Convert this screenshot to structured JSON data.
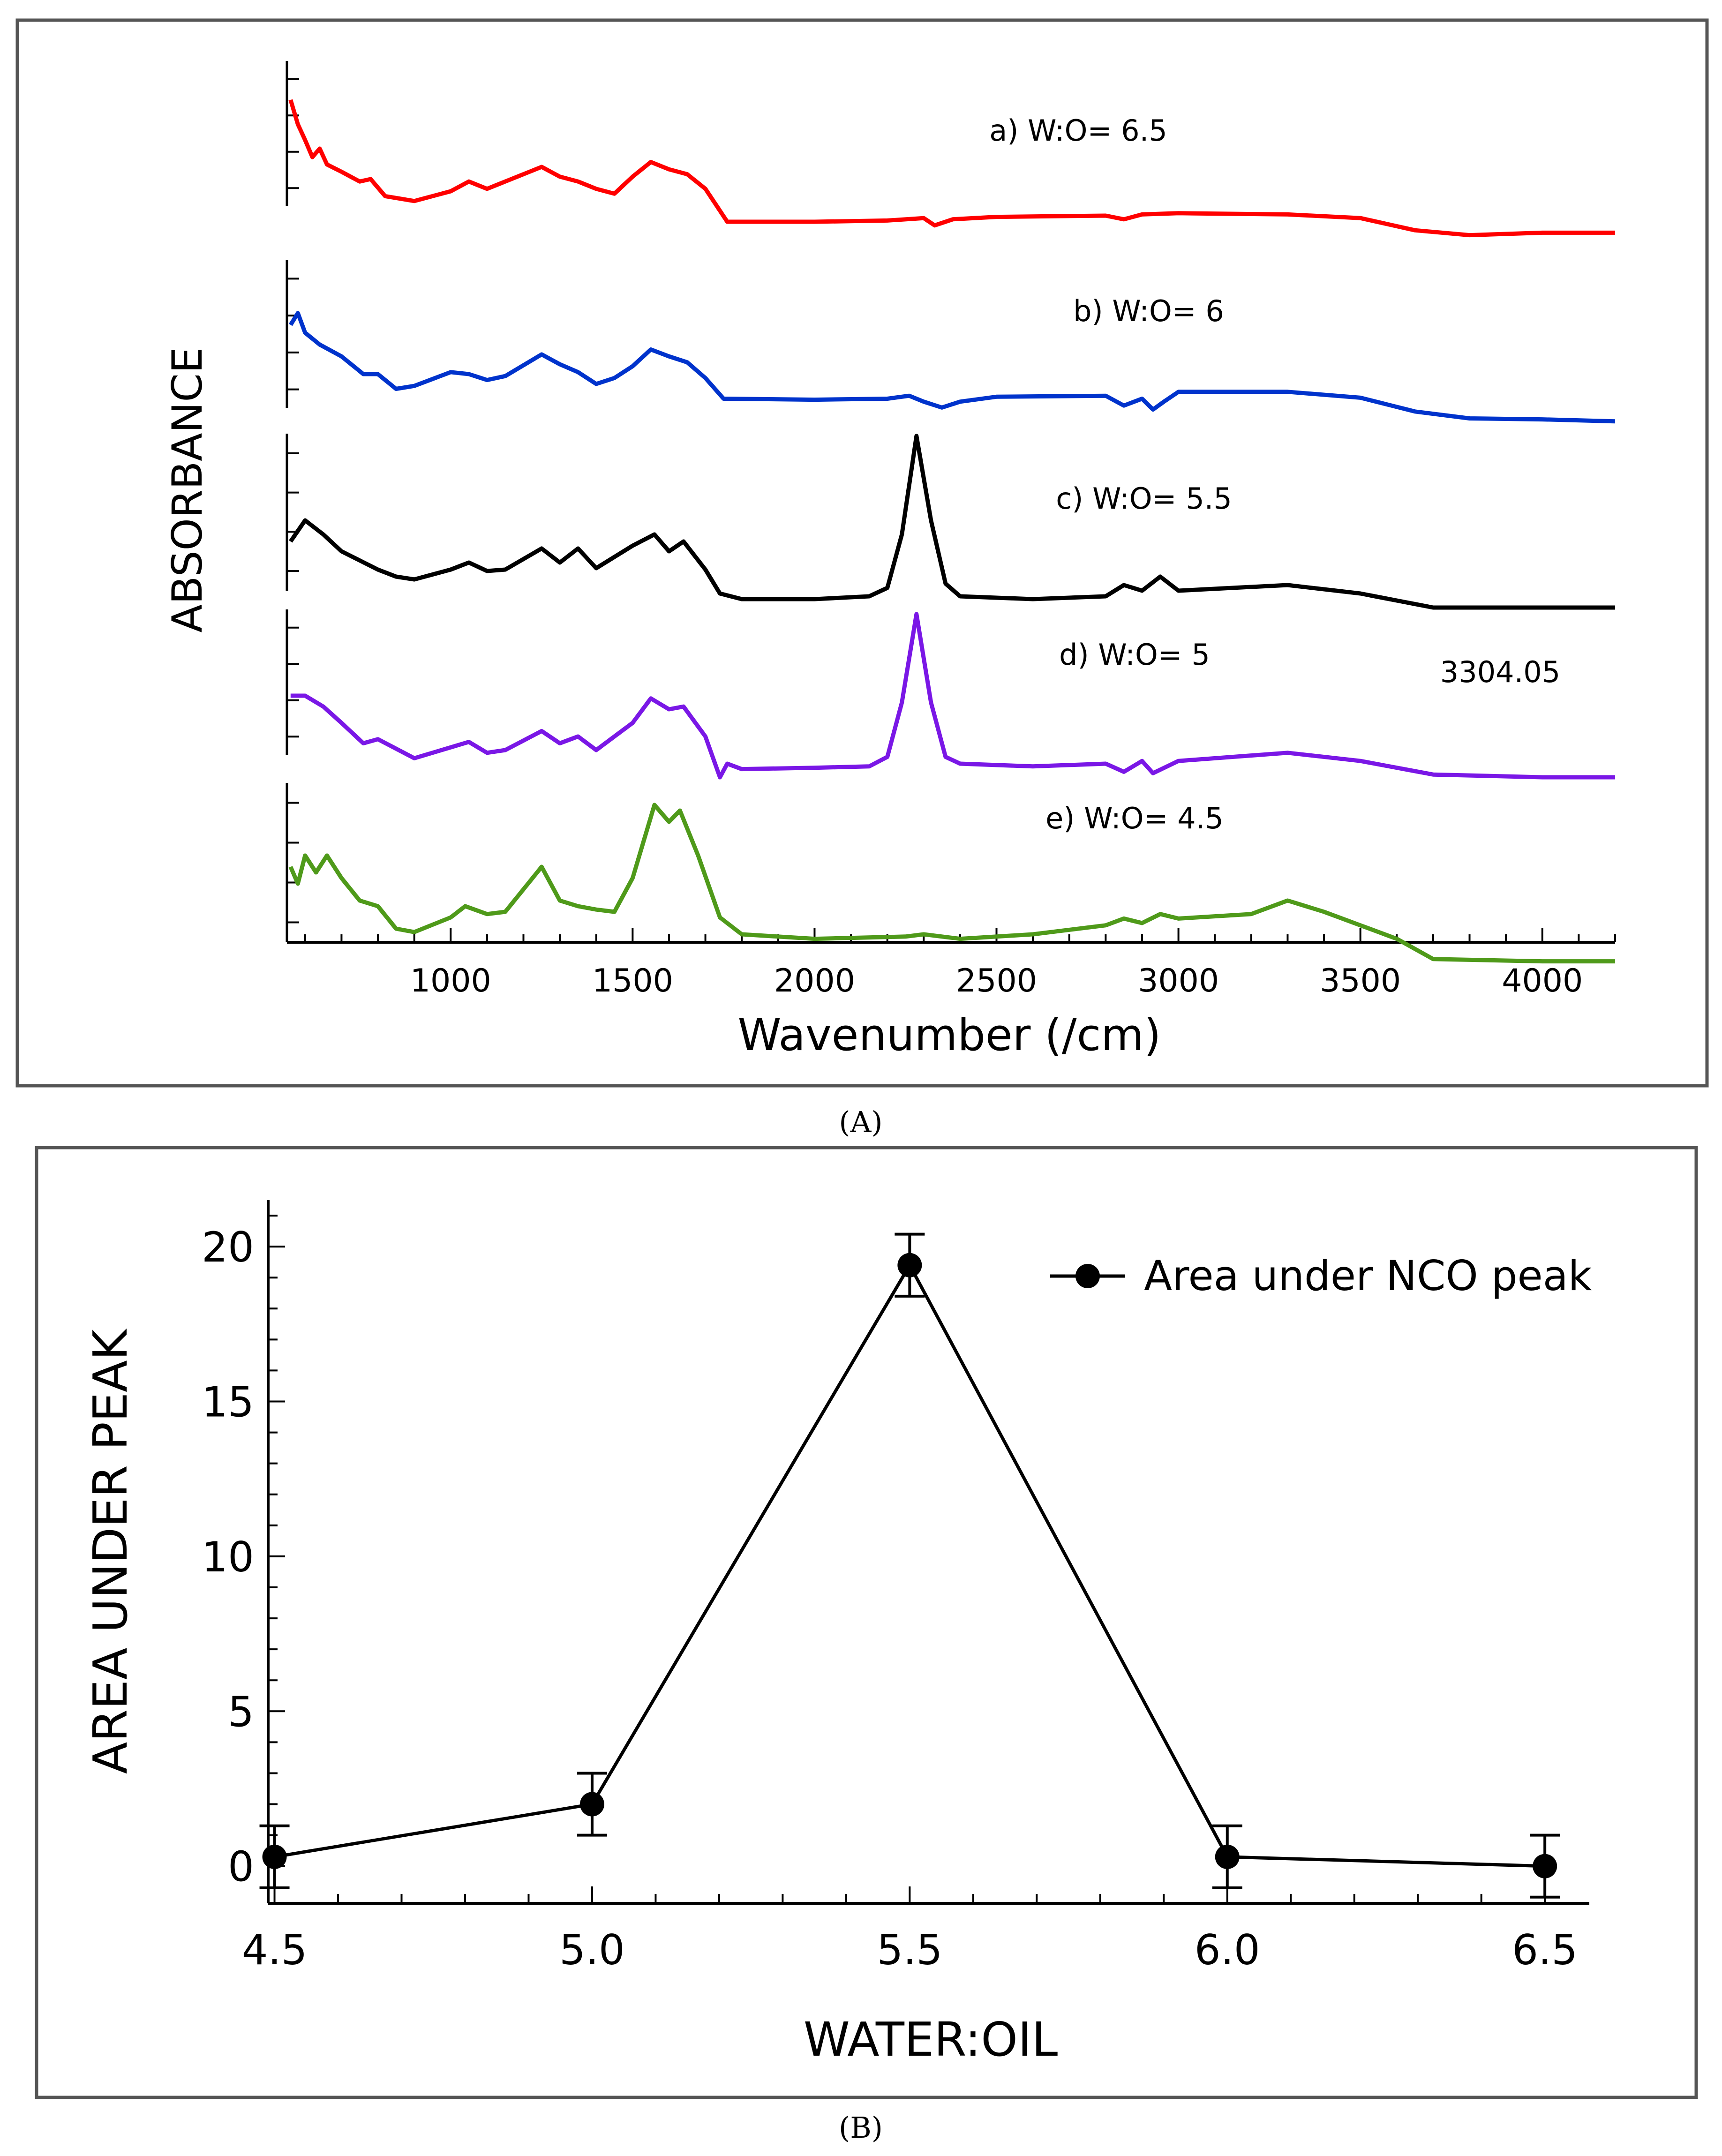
{
  "panels": {
    "a_caption": "(A)",
    "b_caption": "(B)"
  },
  "chart_data": [
    {
      "type": "line",
      "title": "",
      "xlabel": "Wavenumber (/cm)",
      "ylabel": "ABSORBANCE",
      "xlim": [
        550,
        4200
      ],
      "xticks": [
        1000,
        1500,
        2000,
        2500,
        3000,
        3500,
        4000
      ],
      "annotation": "3304.05",
      "series": [
        {
          "name": "a) W:O= 6.5",
          "color": "#ff0000",
          "points": [
            [
              560,
              0.95
            ],
            [
              580,
              0.75
            ],
            [
              600,
              0.62
            ],
            [
              620,
              0.48
            ],
            [
              640,
              0.55
            ],
            [
              660,
              0.42
            ],
            [
              700,
              0.36
            ],
            [
              750,
              0.28
            ],
            [
              780,
              0.3
            ],
            [
              820,
              0.16
            ],
            [
              900,
              0.12
            ],
            [
              1000,
              0.2
            ],
            [
              1050,
              0.28
            ],
            [
              1100,
              0.22
            ],
            [
              1150,
              0.28
            ],
            [
              1250,
              0.4
            ],
            [
              1300,
              0.32
            ],
            [
              1350,
              0.28
            ],
            [
              1400,
              0.22
            ],
            [
              1450,
              0.18
            ],
            [
              1500,
              0.32
            ],
            [
              1550,
              0.44
            ],
            [
              1600,
              0.38
            ],
            [
              1650,
              0.34
            ],
            [
              1700,
              0.22
            ],
            [
              1760,
              -0.05
            ],
            [
              2000,
              -0.05
            ],
            [
              2200,
              -0.04
            ],
            [
              2300,
              -0.02
            ],
            [
              2330,
              -0.08
            ],
            [
              2380,
              -0.03
            ],
            [
              2500,
              -0.01
            ],
            [
              2800,
              0.0
            ],
            [
              2850,
              -0.03
            ],
            [
              2900,
              0.01
            ],
            [
              3000,
              0.02
            ],
            [
              3300,
              0.01
            ],
            [
              3500,
              -0.02
            ],
            [
              3650,
              -0.12
            ],
            [
              3800,
              -0.16
            ],
            [
              4000,
              -0.14
            ],
            [
              4200,
              -0.14
            ]
          ]
        },
        {
          "name": "b) W:O= 6",
          "color": "#0033cc",
          "points": [
            [
              560,
              0.7
            ],
            [
              580,
              0.82
            ],
            [
              600,
              0.62
            ],
            [
              640,
              0.5
            ],
            [
              700,
              0.38
            ],
            [
              760,
              0.2
            ],
            [
              800,
              0.2
            ],
            [
              850,
              0.05
            ],
            [
              900,
              0.08
            ],
            [
              1000,
              0.22
            ],
            [
              1050,
              0.2
            ],
            [
              1100,
              0.14
            ],
            [
              1150,
              0.18
            ],
            [
              1250,
              0.4
            ],
            [
              1300,
              0.3
            ],
            [
              1350,
              0.22
            ],
            [
              1400,
              0.1
            ],
            [
              1450,
              0.16
            ],
            [
              1500,
              0.28
            ],
            [
              1550,
              0.45
            ],
            [
              1600,
              0.38
            ],
            [
              1650,
              0.32
            ],
            [
              1700,
              0.16
            ],
            [
              1750,
              -0.05
            ],
            [
              2000,
              -0.06
            ],
            [
              2200,
              -0.05
            ],
            [
              2260,
              -0.02
            ],
            [
              2300,
              -0.08
            ],
            [
              2350,
              -0.14
            ],
            [
              2400,
              -0.08
            ],
            [
              2500,
              -0.03
            ],
            [
              2800,
              -0.02
            ],
            [
              2850,
              -0.12
            ],
            [
              2900,
              -0.05
            ],
            [
              2930,
              -0.16
            ],
            [
              2960,
              -0.08
            ],
            [
              3000,
              0.02
            ],
            [
              3300,
              0.02
            ],
            [
              3500,
              -0.04
            ],
            [
              3650,
              -0.18
            ],
            [
              3800,
              -0.25
            ],
            [
              4000,
              -0.26
            ],
            [
              4200,
              -0.28
            ]
          ]
        },
        {
          "name": "c) W:O= 5.5",
          "color": "#000000",
          "points": [
            [
              560,
              0.25
            ],
            [
              600,
              0.4
            ],
            [
              650,
              0.3
            ],
            [
              700,
              0.18
            ],
            [
              800,
              0.05
            ],
            [
              850,
              0.0
            ],
            [
              900,
              -0.02
            ],
            [
              1000,
              0.05
            ],
            [
              1050,
              0.1
            ],
            [
              1100,
              0.04
            ],
            [
              1150,
              0.05
            ],
            [
              1250,
              0.2
            ],
            [
              1300,
              0.1
            ],
            [
              1350,
              0.2
            ],
            [
              1400,
              0.06
            ],
            [
              1500,
              0.22
            ],
            [
              1560,
              0.3
            ],
            [
              1600,
              0.18
            ],
            [
              1640,
              0.25
            ],
            [
              1700,
              0.05
            ],
            [
              1740,
              -0.12
            ],
            [
              1800,
              -0.16
            ],
            [
              2000,
              -0.16
            ],
            [
              2150,
              -0.14
            ],
            [
              2200,
              -0.08
            ],
            [
              2240,
              0.3
            ],
            [
              2280,
              1.0
            ],
            [
              2320,
              0.4
            ],
            [
              2360,
              -0.05
            ],
            [
              2400,
              -0.14
            ],
            [
              2600,
              -0.16
            ],
            [
              2800,
              -0.14
            ],
            [
              2850,
              -0.06
            ],
            [
              2900,
              -0.1
            ],
            [
              2950,
              0.0
            ],
            [
              3000,
              -0.1
            ],
            [
              3300,
              -0.06
            ],
            [
              3500,
              -0.12
            ],
            [
              3700,
              -0.22
            ],
            [
              4000,
              -0.22
            ],
            [
              4200,
              -0.22
            ]
          ]
        },
        {
          "name": "d) W:O= 5",
          "color": "#7a17e6",
          "points": [
            [
              560,
              0.4
            ],
            [
              600,
              0.4
            ],
            [
              650,
              0.32
            ],
            [
              700,
              0.2
            ],
            [
              760,
              0.05
            ],
            [
              800,
              0.08
            ],
            [
              900,
              -0.06
            ],
            [
              1000,
              0.02
            ],
            [
              1050,
              0.06
            ],
            [
              1100,
              -0.02
            ],
            [
              1150,
              0.0
            ],
            [
              1250,
              0.14
            ],
            [
              1300,
              0.05
            ],
            [
              1350,
              0.1
            ],
            [
              1400,
              0.0
            ],
            [
              1450,
              0.1
            ],
            [
              1500,
              0.2
            ],
            [
              1550,
              0.38
            ],
            [
              1600,
              0.3
            ],
            [
              1640,
              0.32
            ],
            [
              1700,
              0.1
            ],
            [
              1740,
              -0.2
            ],
            [
              1760,
              -0.1
            ],
            [
              1800,
              -0.14
            ],
            [
              2000,
              -0.13
            ],
            [
              2150,
              -0.12
            ],
            [
              2200,
              -0.05
            ],
            [
              2240,
              0.35
            ],
            [
              2280,
              1.0
            ],
            [
              2320,
              0.35
            ],
            [
              2360,
              -0.05
            ],
            [
              2400,
              -0.1
            ],
            [
              2600,
              -0.12
            ],
            [
              2800,
              -0.1
            ],
            [
              2850,
              -0.16
            ],
            [
              2900,
              -0.08
            ],
            [
              2930,
              -0.17
            ],
            [
              3000,
              -0.08
            ],
            [
              3300,
              -0.02
            ],
            [
              3500,
              -0.08
            ],
            [
              3700,
              -0.18
            ],
            [
              4000,
              -0.2
            ],
            [
              4200,
              -0.2
            ]
          ]
        },
        {
          "name": "e) W:O= 4.5",
          "color": "#4f9a1a",
          "points": [
            [
              560,
              0.4
            ],
            [
              580,
              0.25
            ],
            [
              600,
              0.5
            ],
            [
              630,
              0.35
            ],
            [
              660,
              0.5
            ],
            [
              700,
              0.3
            ],
            [
              750,
              0.1
            ],
            [
              800,
              0.05
            ],
            [
              850,
              -0.15
            ],
            [
              900,
              -0.18
            ],
            [
              1000,
              -0.05
            ],
            [
              1040,
              0.05
            ],
            [
              1100,
              -0.02
            ],
            [
              1150,
              0.0
            ],
            [
              1250,
              0.4
            ],
            [
              1300,
              0.1
            ],
            [
              1350,
              0.05
            ],
            [
              1400,
              0.02
            ],
            [
              1450,
              0.0
            ],
            [
              1500,
              0.3
            ],
            [
              1560,
              0.95
            ],
            [
              1600,
              0.8
            ],
            [
              1630,
              0.9
            ],
            [
              1680,
              0.5
            ],
            [
              1740,
              -0.05
            ],
            [
              1800,
              -0.2
            ],
            [
              2000,
              -0.24
            ],
            [
              2250,
              -0.22
            ],
            [
              2300,
              -0.2
            ],
            [
              2400,
              -0.24
            ],
            [
              2600,
              -0.2
            ],
            [
              2800,
              -0.12
            ],
            [
              2850,
              -0.06
            ],
            [
              2900,
              -0.1
            ],
            [
              2950,
              -0.02
            ],
            [
              3000,
              -0.06
            ],
            [
              3200,
              -0.02
            ],
            [
              3300,
              0.1
            ],
            [
              3400,
              0.0
            ],
            [
              3500,
              -0.12
            ],
            [
              3600,
              -0.24
            ],
            [
              3700,
              -0.42
            ],
            [
              4000,
              -0.44
            ],
            [
              4200,
              -0.44
            ]
          ]
        }
      ]
    },
    {
      "type": "line",
      "title": "",
      "xlabel": "WATER:OIL",
      "ylabel": "AREA UNDER PEAK",
      "xlim": [
        4.49,
        6.57
      ],
      "ylim": [
        -1.2,
        21.5
      ],
      "x": [
        4.5,
        5.0,
        5.5,
        6.0,
        6.5
      ],
      "xtick_labels": [
        "4.5",
        "5.0",
        "5.5",
        "6.0",
        "6.5"
      ],
      "yticks": [
        0,
        5,
        10,
        15,
        20
      ],
      "series": [
        {
          "name": "Area under NCO peak",
          "values": [
            0.3,
            2.0,
            19.4,
            0.3,
            0.0
          ],
          "errors": [
            1.0,
            1.0,
            1.0,
            1.0,
            1.0
          ]
        }
      ],
      "legend": "top-right"
    }
  ]
}
